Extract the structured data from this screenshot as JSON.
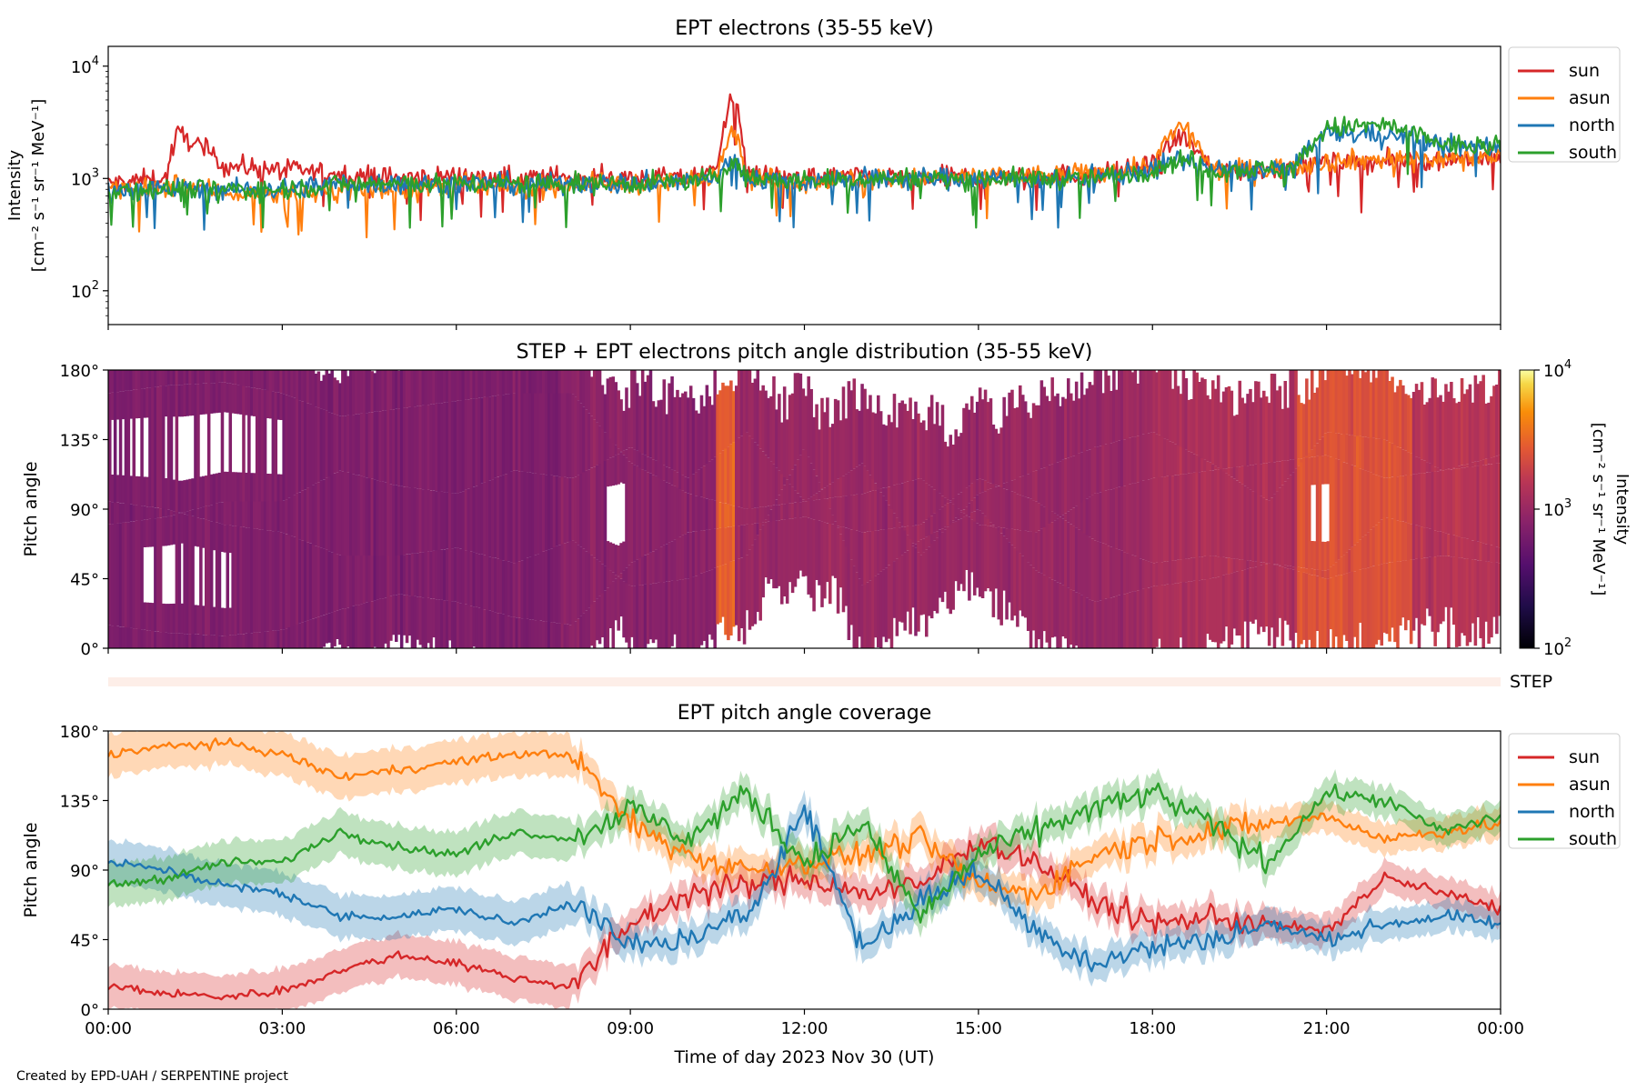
{
  "credit": "Created by EPD-UAH / SERPENTINE project",
  "chart_data": [
    {
      "type": "line",
      "title": "EPT electrons (35-55 keV)",
      "ylabel_line1": "Intensity",
      "ylabel_line2": "[cm⁻² s⁻¹ sr⁻¹ MeV⁻¹]",
      "yscale": "log",
      "ylim": [
        50,
        15000
      ],
      "yticks": [
        {
          "value": 100,
          "base": "10",
          "exp": "2"
        },
        {
          "value": 1000,
          "base": "10",
          "exp": "3"
        },
        {
          "value": 10000,
          "base": "10",
          "exp": "4"
        }
      ],
      "xlim_hours": [
        0,
        24
      ],
      "legend_position": "outside-right",
      "x_hours": [
        0,
        1,
        1.2,
        2,
        3,
        4,
        5,
        6,
        7,
        8,
        9,
        10,
        10.5,
        10.75,
        11,
        12,
        13,
        14,
        15,
        16,
        17,
        18,
        18.5,
        19,
        20,
        20.5,
        21,
        22,
        23,
        24
      ],
      "series": [
        {
          "name": "sun",
          "color": "#d62728",
          "values": [
            900,
            1000,
            2500,
            1300,
            1200,
            1100,
            1000,
            1050,
            1000,
            1050,
            1000,
            1000,
            1200,
            5500,
            1100,
            1000,
            1050,
            1000,
            1050,
            1100,
            1050,
            1300,
            2400,
            1200,
            1200,
            1300,
            1400,
            1400,
            1500,
            1500
          ]
        },
        {
          "name": "asun",
          "color": "#ff7f0e",
          "values": [
            800,
            800,
            900,
            750,
            700,
            800,
            800,
            850,
            800,
            900,
            900,
            950,
            1100,
            3000,
            1000,
            950,
            1000,
            1000,
            1050,
            1050,
            1100,
            1300,
            3000,
            1200,
            1200,
            1300,
            1400,
            1500,
            1500,
            1600
          ]
        },
        {
          "name": "north",
          "color": "#1f77b4",
          "values": [
            800,
            800,
            800,
            800,
            800,
            900,
            900,
            900,
            900,
            900,
            900,
            950,
            1000,
            1500,
            1000,
            950,
            1000,
            1000,
            1000,
            1000,
            1000,
            1200,
            1500,
            1200,
            1200,
            1300,
            2500,
            2500,
            2000,
            1900
          ]
        },
        {
          "name": "south",
          "color": "#2ca02c",
          "values": [
            800,
            800,
            800,
            800,
            800,
            900,
            900,
            900,
            900,
            900,
            900,
            950,
            1000,
            1500,
            1000,
            950,
            1000,
            1000,
            1000,
            1000,
            1000,
            1200,
            1500,
            1200,
            1200,
            1300,
            2800,
            3000,
            2000,
            1900
          ]
        }
      ]
    },
    {
      "type": "heatmap",
      "title": "STEP + EPT electrons pitch angle distribution (35-55 keV)",
      "ylabel": "Pitch angle",
      "ylim": [
        0,
        180
      ],
      "yticks": [
        "0°",
        "45°",
        "90°",
        "135°",
        "180°"
      ],
      "xlim_hours": [
        0,
        24
      ],
      "colorbar": {
        "label_line1": "Intensity",
        "label_line2": "[cm⁻² s⁻¹ sr⁻¹ MeV⁻¹]",
        "scale": "log",
        "range": [
          100,
          10000
        ],
        "ticks": [
          {
            "value": 100,
            "base": "10",
            "exp": "2"
          },
          {
            "value": 1000,
            "base": "10",
            "exp": "3"
          },
          {
            "value": 10000,
            "base": "10",
            "exp": "4"
          }
        ],
        "colormap": "inferno"
      },
      "row_label": "STEP",
      "typical_intensity": [
        {
          "from_hours": 0,
          "to_hours": 8,
          "value": 700
        },
        {
          "from_hours": 8,
          "to_hours": 10.5,
          "value": 800
        },
        {
          "from_hours": 10.5,
          "to_hours": 10.8,
          "value": 3000
        },
        {
          "from_hours": 10.8,
          "to_hours": 18,
          "value": 1000
        },
        {
          "from_hours": 18,
          "to_hours": 20.5,
          "value": 1300
        },
        {
          "from_hours": 20.5,
          "to_hours": 22.5,
          "value": 2500
        },
        {
          "from_hours": 22.5,
          "to_hours": 24,
          "value": 1500
        }
      ]
    },
    {
      "type": "line",
      "title": "EPT pitch angle coverage",
      "ylabel": "Pitch angle",
      "xlabel": "Time of day 2023 Nov 30 (UT)",
      "ylim": [
        0,
        180
      ],
      "yticks": [
        "0°",
        "45°",
        "90°",
        "135°",
        "180°"
      ],
      "xticks": [
        "00:00",
        "03:00",
        "06:00",
        "09:00",
        "12:00",
        "15:00",
        "18:00",
        "21:00",
        "00:00"
      ],
      "xlim_hours": [
        0,
        24
      ],
      "legend_position": "outside-right",
      "x_hours": [
        0,
        1,
        2,
        3,
        4,
        5,
        6,
        7,
        8,
        9,
        10,
        11,
        12,
        13,
        14,
        15,
        16,
        17,
        18,
        19,
        20,
        21,
        22,
        23,
        24
      ],
      "series": [
        {
          "name": "sun",
          "color": "#d62728",
          "values": [
            15,
            10,
            8,
            12,
            25,
            35,
            30,
            20,
            15,
            55,
            75,
            80,
            85,
            75,
            80,
            110,
            95,
            70,
            55,
            60,
            55,
            50,
            85,
            75,
            65
          ]
        },
        {
          "name": "asun",
          "color": "#ff7f0e",
          "values": [
            165,
            170,
            172,
            165,
            150,
            155,
            160,
            165,
            165,
            120,
            100,
            90,
            95,
            100,
            110,
            80,
            75,
            100,
            110,
            115,
            120,
            125,
            110,
            115,
            120
          ]
        },
        {
          "name": "north",
          "color": "#1f77b4",
          "values": [
            95,
            90,
            80,
            75,
            60,
            60,
            65,
            55,
            70,
            40,
            45,
            60,
            130,
            40,
            70,
            90,
            50,
            30,
            40,
            45,
            55,
            45,
            55,
            60,
            55
          ]
        },
        {
          "name": "south",
          "color": "#2ca02c",
          "values": [
            80,
            85,
            95,
            95,
            115,
            105,
            100,
            115,
            110,
            130,
            110,
            140,
            95,
            120,
            60,
            100,
            115,
            130,
            140,
            120,
            95,
            140,
            135,
            115,
            125
          ]
        }
      ]
    }
  ]
}
